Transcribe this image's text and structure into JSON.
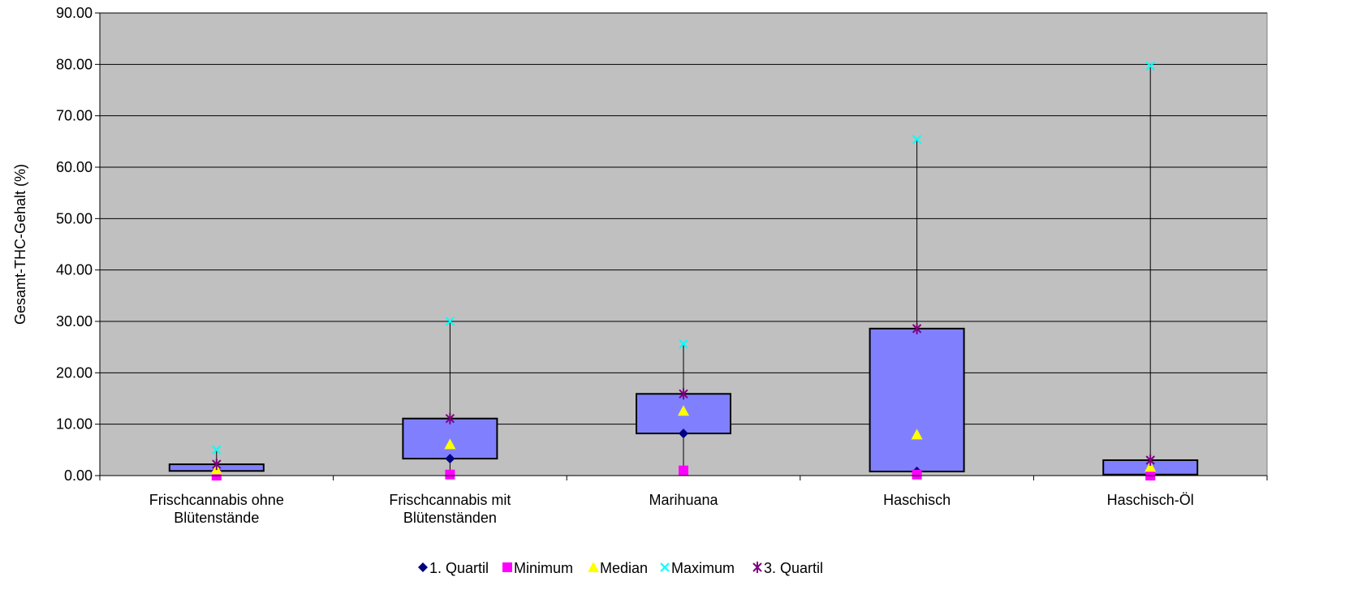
{
  "chart_data": {
    "type": "box",
    "ylabel": "Gesamt-THC-Gehalt (%)",
    "ylim": [
      0,
      90
    ],
    "ytick_step": 10,
    "ytick_labels": [
      "0.00",
      "10.00",
      "20.00",
      "30.00",
      "40.00",
      "50.00",
      "60.00",
      "70.00",
      "80.00",
      "90.00"
    ],
    "grid": true,
    "legend_position": "bottom",
    "plot_background": "#C0C0C0",
    "box_fill": "#8080FF",
    "categories": [
      "Frischcannabis ohne Blütenstände",
      "Frischcannabis mit Blütenständen",
      "Marihuana",
      "Haschisch",
      "Haschisch-Öl"
    ],
    "category_lines": [
      [
        "Frischcannabis ohne",
        "Blütenstände"
      ],
      [
        "Frischcannabis mit",
        "Blütenständen"
      ],
      [
        "Marihuana"
      ],
      [
        "Haschisch"
      ],
      [
        "Haschisch-Öl"
      ]
    ],
    "series": [
      {
        "name": "1. Quartil",
        "marker": "diamond",
        "color": "#000080",
        "values": [
          0.9,
          3.3,
          8.2,
          0.8,
          0.2
        ]
      },
      {
        "name": "Minimum",
        "marker": "square",
        "color": "#FF00FF",
        "values": [
          0.0,
          0.2,
          1.0,
          0.2,
          0.0
        ]
      },
      {
        "name": "Median",
        "marker": "triangle",
        "color": "#FFFF00",
        "values": [
          1.2,
          6.1,
          12.6,
          8.0,
          1.7
        ]
      },
      {
        "name": "Maximum",
        "marker": "x",
        "color": "#00FFFF",
        "values": [
          5.0,
          30.0,
          25.6,
          65.4,
          79.7
        ]
      },
      {
        "name": "3. Quartil",
        "marker": "star",
        "color": "#800080",
        "values": [
          2.2,
          11.1,
          15.9,
          28.6,
          3.0
        ]
      }
    ]
  }
}
